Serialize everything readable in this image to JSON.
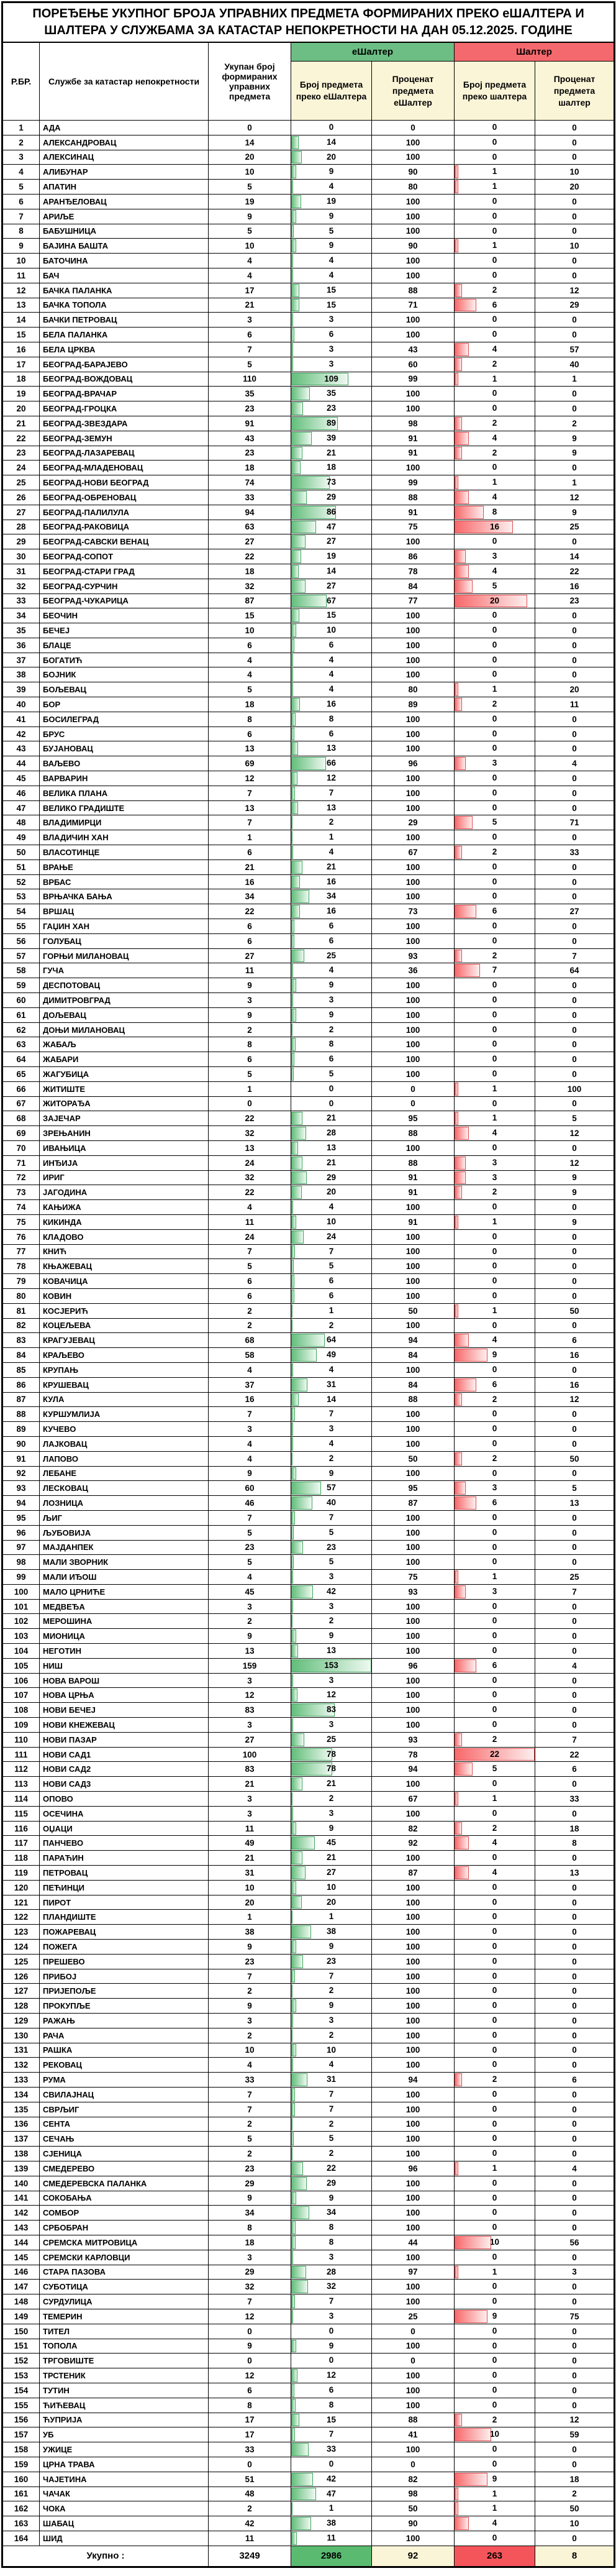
{
  "title": "ПОРЕЂЕЊЕ УКУПНОГ БРОЈА УПРАВНИХ ПРЕДМЕТА ФОРМИРАНИХ ПРЕКО еШАЛТЕРА И ШАЛТЕРА У СЛУЖБАМА ЗА КАТАСТАР НЕПОКРЕТНОСТИ НА ДАН 05.12.2025. ГОДИНЕ",
  "header": {
    "rbr": "Р.БР.",
    "office": "Службе за катастар непокретности",
    "total": "Укупан број формираних управних предмета",
    "eshalter_group": "еШалтер",
    "shalter_group": "Шалтер",
    "e_count": "Број предмета преко еШалтера",
    "e_pct": "Проценат предмета еШалтер",
    "s_count": "Број предмета преко шалтера",
    "s_pct": "Проценат предмета шалтер"
  },
  "colors": {
    "green_header": "#6cbe84",
    "red_header": "#f4696d",
    "cream": "#fbf5d8",
    "bar_green": "#63be7b",
    "bar_green_border": "#3fa45c",
    "bar_red": "#f8696b",
    "bar_red_border": "#dd4b4e",
    "total_green": "#5abb70",
    "total_red": "#f4555a"
  },
  "bars": {
    "e_max": 153,
    "s_max": 22
  },
  "totals": {
    "label": "Укупно :",
    "total": 3249,
    "e_count": 2986,
    "e_pct": 92,
    "s_count": 263,
    "s_pct": 8
  },
  "rows": [
    [
      1,
      "АДА",
      0,
      0,
      0,
      0,
      0
    ],
    [
      2,
      "АЛЕКСАНДРОВАЦ",
      14,
      14,
      100,
      0,
      0
    ],
    [
      3,
      "АЛЕКСИНАЦ",
      20,
      20,
      100,
      0,
      0
    ],
    [
      4,
      "АЛИБУНАР",
      10,
      9,
      90,
      1,
      10
    ],
    [
      5,
      "АПАТИН",
      5,
      4,
      80,
      1,
      20
    ],
    [
      6,
      "АРАНЂЕЛОВАЦ",
      19,
      19,
      100,
      0,
      0
    ],
    [
      7,
      "АРИЉЕ",
      9,
      9,
      100,
      0,
      0
    ],
    [
      8,
      "БАБУШНИЦА",
      5,
      5,
      100,
      0,
      0
    ],
    [
      9,
      "БАЈИНА БАШТА",
      10,
      9,
      90,
      1,
      10
    ],
    [
      10,
      "БАТОЧИНА",
      4,
      4,
      100,
      0,
      0
    ],
    [
      11,
      "БАЧ",
      4,
      4,
      100,
      0,
      0
    ],
    [
      12,
      "БАЧКА ПАЛАНКА",
      17,
      15,
      88,
      2,
      12
    ],
    [
      13,
      "БАЧКА ТОПОЛА",
      21,
      15,
      71,
      6,
      29
    ],
    [
      14,
      "БАЧКИ ПЕТРОВАЦ",
      3,
      3,
      100,
      0,
      0
    ],
    [
      15,
      "БЕЛА ПАЛАНКА",
      6,
      6,
      100,
      0,
      0
    ],
    [
      16,
      "БЕЛА ЦРКВА",
      7,
      3,
      43,
      4,
      57
    ],
    [
      17,
      "БЕОГРАД-БАРАЈЕВО",
      5,
      3,
      60,
      2,
      40
    ],
    [
      18,
      "БЕОГРАД-ВОЖДОВАЦ",
      110,
      109,
      99,
      1,
      1
    ],
    [
      19,
      "БЕОГРАД-ВРАЧАР",
      35,
      35,
      100,
      0,
      0
    ],
    [
      20,
      "БЕОГРАД-ГРОЦКА",
      23,
      23,
      100,
      0,
      0
    ],
    [
      21,
      "БЕОГРАД-ЗВЕЗДАРА",
      91,
      89,
      98,
      2,
      2
    ],
    [
      22,
      "БЕОГРАД-ЗЕМУН",
      43,
      39,
      91,
      4,
      9
    ],
    [
      23,
      "БЕОГРАД-ЛАЗАРЕВАЦ",
      23,
      21,
      91,
      2,
      9
    ],
    [
      24,
      "БЕОГРАД-МЛАДЕНОВАЦ",
      18,
      18,
      100,
      0,
      0
    ],
    [
      25,
      "БЕОГРАД-НОВИ БЕОГРАД",
      74,
      73,
      99,
      1,
      1
    ],
    [
      26,
      "БЕОГРАД-ОБРЕНОВАЦ",
      33,
      29,
      88,
      4,
      12
    ],
    [
      27,
      "БЕОГРАД-ПАЛИЛУЛА",
      94,
      86,
      91,
      8,
      9
    ],
    [
      28,
      "БЕОГРАД-РАКОВИЦА",
      63,
      47,
      75,
      16,
      25
    ],
    [
      29,
      "БЕОГРАД-САВСКИ ВЕНАЦ",
      27,
      27,
      100,
      0,
      0
    ],
    [
      30,
      "БЕОГРАД-СОПОТ",
      22,
      19,
      86,
      3,
      14
    ],
    [
      31,
      "БЕОГРАД-СТАРИ ГРАД",
      18,
      14,
      78,
      4,
      22
    ],
    [
      32,
      "БЕОГРАД-СУРЧИН",
      32,
      27,
      84,
      5,
      16
    ],
    [
      33,
      "БЕОГРАД-ЧУКАРИЦА",
      87,
      67,
      77,
      20,
      23
    ],
    [
      34,
      "БЕОЧИН",
      15,
      15,
      100,
      0,
      0
    ],
    [
      35,
      "БЕЧЕЈ",
      10,
      10,
      100,
      0,
      0
    ],
    [
      36,
      "БЛАЦЕ",
      6,
      6,
      100,
      0,
      0
    ],
    [
      37,
      "БОГАТИЋ",
      4,
      4,
      100,
      0,
      0
    ],
    [
      38,
      "БОЈНИК",
      4,
      4,
      100,
      0,
      0
    ],
    [
      39,
      "БОЉЕВАЦ",
      5,
      4,
      80,
      1,
      20
    ],
    [
      40,
      "БОР",
      18,
      16,
      89,
      2,
      11
    ],
    [
      41,
      "БОСИЛЕГРАД",
      8,
      8,
      100,
      0,
      0
    ],
    [
      42,
      "БРУС",
      6,
      6,
      100,
      0,
      0
    ],
    [
      43,
      "БУЈАНОВАЦ",
      13,
      13,
      100,
      0,
      0
    ],
    [
      44,
      "ВАЉЕВО",
      69,
      66,
      96,
      3,
      4
    ],
    [
      45,
      "ВАРВАРИН",
      12,
      12,
      100,
      0,
      0
    ],
    [
      46,
      "ВЕЛИКА ПЛАНА",
      7,
      7,
      100,
      0,
      0
    ],
    [
      47,
      "ВЕЛИКО ГРАДИШТЕ",
      13,
      13,
      100,
      0,
      0
    ],
    [
      48,
      "ВЛАДИМИРЦИ",
      7,
      2,
      29,
      5,
      71
    ],
    [
      49,
      "ВЛАДИЧИН ХАН",
      1,
      1,
      100,
      0,
      0
    ],
    [
      50,
      "ВЛАСОТИНЦЕ",
      6,
      4,
      67,
      2,
      33
    ],
    [
      51,
      "ВРАЊЕ",
      21,
      21,
      100,
      0,
      0
    ],
    [
      52,
      "ВРБАС",
      16,
      16,
      100,
      0,
      0
    ],
    [
      53,
      "ВРЊАЧКА БАЊА",
      34,
      34,
      100,
      0,
      0
    ],
    [
      54,
      "ВРШАЦ",
      22,
      16,
      73,
      6,
      27
    ],
    [
      55,
      "ГАЏИН ХАН",
      6,
      6,
      100,
      0,
      0
    ],
    [
      56,
      "ГОЛУБАЦ",
      6,
      6,
      100,
      0,
      0
    ],
    [
      57,
      "ГОРЊИ МИЛАНОВАЦ",
      27,
      25,
      93,
      2,
      7
    ],
    [
      58,
      "ГУЧА",
      11,
      4,
      36,
      7,
      64
    ],
    [
      59,
      "ДЕСПОТОВАЦ",
      9,
      9,
      100,
      0,
      0
    ],
    [
      60,
      "ДИМИТРОВГРАД",
      3,
      3,
      100,
      0,
      0
    ],
    [
      61,
      "ДОЉЕВАЦ",
      9,
      9,
      100,
      0,
      0
    ],
    [
      62,
      "ДОЊИ МИЛАНОВАЦ",
      2,
      2,
      100,
      0,
      0
    ],
    [
      63,
      "ЖАБАЉ",
      8,
      8,
      100,
      0,
      0
    ],
    [
      64,
      "ЖАБАРИ",
      6,
      6,
      100,
      0,
      0
    ],
    [
      65,
      "ЖАГУБИЦА",
      5,
      5,
      100,
      0,
      0
    ],
    [
      66,
      "ЖИТИШТЕ",
      1,
      0,
      0,
      1,
      100
    ],
    [
      67,
      "ЖИТОРАЂА",
      0,
      0,
      0,
      0,
      0
    ],
    [
      68,
      "ЗАЈЕЧАР",
      22,
      21,
      95,
      1,
      5
    ],
    [
      69,
      "ЗРЕЊАНИН",
      32,
      28,
      88,
      4,
      12
    ],
    [
      70,
      "ИВАЊИЦА",
      13,
      13,
      100,
      0,
      0
    ],
    [
      71,
      "ИНЂИЈА",
      24,
      21,
      88,
      3,
      12
    ],
    [
      72,
      "ИРИГ",
      32,
      29,
      91,
      3,
      9
    ],
    [
      73,
      "ЈАГОДИНА",
      22,
      20,
      91,
      2,
      9
    ],
    [
      74,
      "КАЊИЖА",
      4,
      4,
      100,
      0,
      0
    ],
    [
      75,
      "КИКИНДА",
      11,
      10,
      91,
      1,
      9
    ],
    [
      76,
      "КЛАДОВО",
      24,
      24,
      100,
      0,
      0
    ],
    [
      77,
      "КНИЋ",
      7,
      7,
      100,
      0,
      0
    ],
    [
      78,
      "КЊАЖЕВАЦ",
      5,
      5,
      100,
      0,
      0
    ],
    [
      79,
      "КОВАЧИЦА",
      6,
      6,
      100,
      0,
      0
    ],
    [
      80,
      "КОВИН",
      6,
      6,
      100,
      0,
      0
    ],
    [
      81,
      "КОСЈЕРИЋ",
      2,
      1,
      50,
      1,
      50
    ],
    [
      82,
      "КОЦЕЉЕВА",
      2,
      2,
      100,
      0,
      0
    ],
    [
      83,
      "КРАГУЈЕВАЦ",
      68,
      64,
      94,
      4,
      6
    ],
    [
      84,
      "КРАЉЕВО",
      58,
      49,
      84,
      9,
      16
    ],
    [
      85,
      "КРУПАЊ",
      4,
      4,
      100,
      0,
      0
    ],
    [
      86,
      "КРУШЕВАЦ",
      37,
      31,
      84,
      6,
      16
    ],
    [
      87,
      "КУЛА",
      16,
      14,
      88,
      2,
      12
    ],
    [
      88,
      "КУРШУМЛИЈА",
      7,
      7,
      100,
      0,
      0
    ],
    [
      89,
      "КУЧЕВО",
      3,
      3,
      100,
      0,
      0
    ],
    [
      90,
      "ЛАЈКОВАЦ",
      4,
      4,
      100,
      0,
      0
    ],
    [
      91,
      "ЛАПОВО",
      4,
      2,
      50,
      2,
      50
    ],
    [
      92,
      "ЛЕБАНЕ",
      9,
      9,
      100,
      0,
      0
    ],
    [
      93,
      "ЛЕСКОВАЦ",
      60,
      57,
      95,
      3,
      5
    ],
    [
      94,
      "ЛОЗНИЦА",
      46,
      40,
      87,
      6,
      13
    ],
    [
      95,
      "ЉИГ",
      7,
      7,
      100,
      0,
      0
    ],
    [
      96,
      "ЉУБОВИЈА",
      5,
      5,
      100,
      0,
      0
    ],
    [
      97,
      "МАЈДАНПЕК",
      23,
      23,
      100,
      0,
      0
    ],
    [
      98,
      "МАЛИ ЗВОРНИК",
      5,
      5,
      100,
      0,
      0
    ],
    [
      99,
      "МАЛИ ИЂОШ",
      4,
      3,
      75,
      1,
      25
    ],
    [
      100,
      "МАЛО ЦРНИЋЕ",
      45,
      42,
      93,
      3,
      7
    ],
    [
      101,
      "МЕДВЕЂА",
      3,
      3,
      100,
      0,
      0
    ],
    [
      102,
      "МЕРОШИНА",
      2,
      2,
      100,
      0,
      0
    ],
    [
      103,
      "МИОНИЦА",
      9,
      9,
      100,
      0,
      0
    ],
    [
      104,
      "НЕГОТИН",
      13,
      13,
      100,
      0,
      0
    ],
    [
      105,
      "НИШ",
      159,
      153,
      96,
      6,
      4
    ],
    [
      106,
      "НОВА ВАРОШ",
      3,
      3,
      100,
      0,
      0
    ],
    [
      107,
      "НОВА ЦРЊА",
      12,
      12,
      100,
      0,
      0
    ],
    [
      108,
      "НОВИ БЕЧЕЈ",
      83,
      83,
      100,
      0,
      0
    ],
    [
      109,
      "НОВИ КНЕЖЕВАЦ",
      3,
      3,
      100,
      0,
      0
    ],
    [
      110,
      "НОВИ ПАЗАР",
      27,
      25,
      93,
      2,
      7
    ],
    [
      111,
      "НОВИ САД1",
      100,
      78,
      78,
      22,
      22
    ],
    [
      112,
      "НОВИ САД2",
      83,
      78,
      94,
      5,
      6
    ],
    [
      113,
      "НОВИ САД3",
      21,
      21,
      100,
      0,
      0
    ],
    [
      114,
      "ОПОВО",
      3,
      2,
      67,
      1,
      33
    ],
    [
      115,
      "ОСЕЧИНА",
      3,
      3,
      100,
      0,
      0
    ],
    [
      116,
      "ОЏАЦИ",
      11,
      9,
      82,
      2,
      18
    ],
    [
      117,
      "ПАНЧЕВО",
      49,
      45,
      92,
      4,
      8
    ],
    [
      118,
      "ПАРАЋИН",
      21,
      21,
      100,
      0,
      0
    ],
    [
      119,
      "ПЕТРОВАЦ",
      31,
      27,
      87,
      4,
      13
    ],
    [
      120,
      "ПЕЋИНЦИ",
      10,
      10,
      100,
      0,
      0
    ],
    [
      121,
      "ПИРОТ",
      20,
      20,
      100,
      0,
      0
    ],
    [
      122,
      "ПЛАНДИШТЕ",
      1,
      1,
      100,
      0,
      0
    ],
    [
      123,
      "ПОЖАРЕВАЦ",
      38,
      38,
      100,
      0,
      0
    ],
    [
      124,
      "ПОЖЕГА",
      9,
      9,
      100,
      0,
      0
    ],
    [
      125,
      "ПРЕШЕВО",
      23,
      23,
      100,
      0,
      0
    ],
    [
      126,
      "ПРИБОЈ",
      7,
      7,
      100,
      0,
      0
    ],
    [
      127,
      "ПРИЈЕПОЉЕ",
      2,
      2,
      100,
      0,
      0
    ],
    [
      128,
      "ПРОКУПЉЕ",
      9,
      9,
      100,
      0,
      0
    ],
    [
      129,
      "РАЖАЊ",
      3,
      3,
      100,
      0,
      0
    ],
    [
      130,
      "РАЧА",
      2,
      2,
      100,
      0,
      0
    ],
    [
      131,
      "РАШКА",
      10,
      10,
      100,
      0,
      0
    ],
    [
      132,
      "РЕКОВАЦ",
      4,
      4,
      100,
      0,
      0
    ],
    [
      133,
      "РУМА",
      33,
      31,
      94,
      2,
      6
    ],
    [
      134,
      "СВИЛАЈНАЦ",
      7,
      7,
      100,
      0,
      0
    ],
    [
      135,
      "СВРЉИГ",
      7,
      7,
      100,
      0,
      0
    ],
    [
      136,
      "СЕНТА",
      2,
      2,
      100,
      0,
      0
    ],
    [
      137,
      "СЕЧАЊ",
      5,
      5,
      100,
      0,
      0
    ],
    [
      138,
      "СЈЕНИЦА",
      2,
      2,
      100,
      0,
      0
    ],
    [
      139,
      "СМЕДЕРЕВО",
      23,
      22,
      96,
      1,
      4
    ],
    [
      140,
      "СМЕДЕРЕВСКА ПАЛАНКА",
      29,
      29,
      100,
      0,
      0
    ],
    [
      141,
      "СОКОБАЊА",
      9,
      9,
      100,
      0,
      0
    ],
    [
      142,
      "СОМБОР",
      34,
      34,
      100,
      0,
      0
    ],
    [
      143,
      "СРБОБРАН",
      8,
      8,
      100,
      0,
      0
    ],
    [
      144,
      "СРЕМСКА МИТРОВИЦА",
      18,
      8,
      44,
      10,
      56
    ],
    [
      145,
      "СРЕМСКИ КАРЛОВЦИ",
      3,
      3,
      100,
      0,
      0
    ],
    [
      146,
      "СТАРА ПАЗОВА",
      29,
      28,
      97,
      1,
      3
    ],
    [
      147,
      "СУБОТИЦА",
      32,
      32,
      100,
      0,
      0
    ],
    [
      148,
      "СУРДУЛИЦА",
      7,
      7,
      100,
      0,
      0
    ],
    [
      149,
      "ТЕМЕРИН",
      12,
      3,
      25,
      9,
      75
    ],
    [
      150,
      "ТИТЕЛ",
      0,
      0,
      0,
      0,
      0
    ],
    [
      151,
      "ТОПОЛА",
      9,
      9,
      100,
      0,
      0
    ],
    [
      152,
      "ТРГОВИШТЕ",
      0,
      0,
      0,
      0,
      0
    ],
    [
      153,
      "ТРСТЕНИК",
      12,
      12,
      100,
      0,
      0
    ],
    [
      154,
      "ТУТИН",
      6,
      6,
      100,
      0,
      0
    ],
    [
      155,
      "ЋИЋЕВАЦ",
      8,
      8,
      100,
      0,
      0
    ],
    [
      156,
      "ЋУПРИЈА",
      17,
      15,
      88,
      2,
      12
    ],
    [
      157,
      "УБ",
      17,
      7,
      41,
      10,
      59
    ],
    [
      158,
      "УЖИЦЕ",
      33,
      33,
      100,
      0,
      0
    ],
    [
      159,
      "ЦРНА ТРАВА",
      0,
      0,
      0,
      0,
      0
    ],
    [
      160,
      "ЧАЈЕТИНА",
      51,
      42,
      82,
      9,
      18
    ],
    [
      161,
      "ЧАЧАК",
      48,
      47,
      98,
      1,
      2
    ],
    [
      162,
      "ЧОКА",
      2,
      1,
      50,
      1,
      50
    ],
    [
      163,
      "ШАБАЦ",
      42,
      38,
      90,
      4,
      10
    ],
    [
      164,
      "ШИД",
      11,
      11,
      100,
      0,
      0
    ]
  ]
}
